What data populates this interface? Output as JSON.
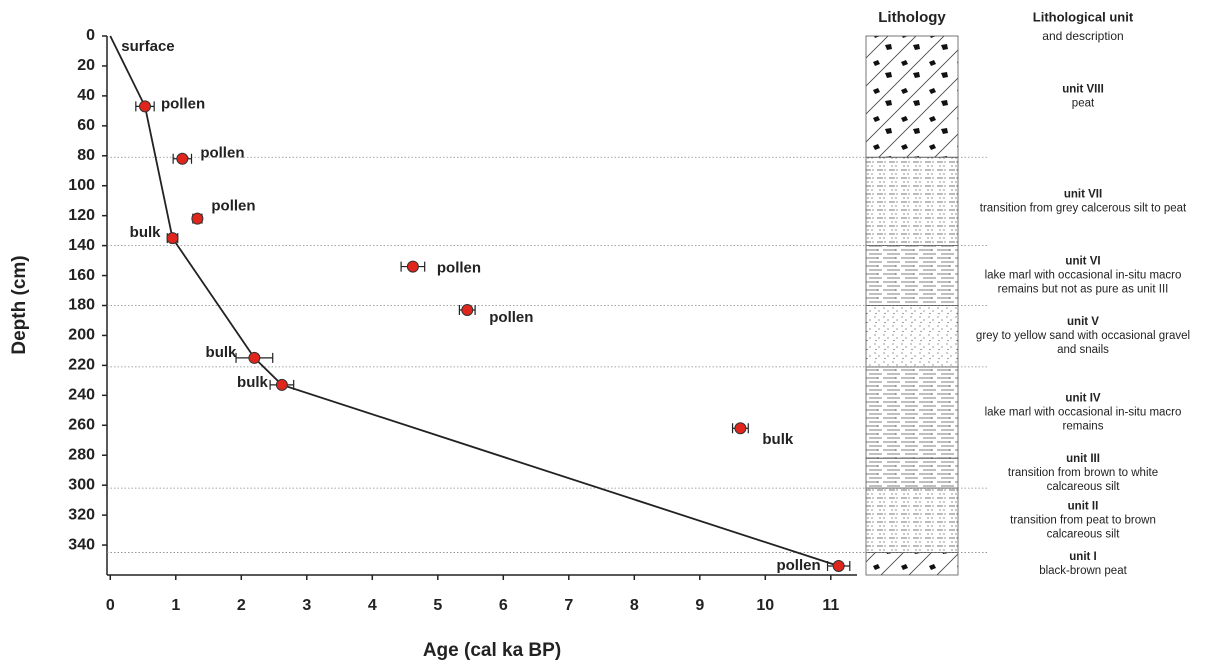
{
  "chart_data": {
    "type": "scatter",
    "x_label": "Age (cal ka BP)",
    "y_label": "Depth (cm)",
    "xlim": [
      -0.05,
      11.4
    ],
    "ylim": [
      0,
      360
    ],
    "y_inverted": true,
    "xticks": [
      0,
      1,
      2,
      3,
      4,
      5,
      6,
      7,
      8,
      9,
      10,
      11
    ],
    "yticks": [
      0,
      20,
      40,
      60,
      80,
      100,
      120,
      140,
      160,
      180,
      200,
      220,
      240,
      260,
      280,
      300,
      320,
      340
    ],
    "marker_color": "#e0261c",
    "surface_label": {
      "text": "surface",
      "color": "#1a9bd8",
      "x": 0,
      "y": 0
    },
    "series": [
      {
        "name": "pollen",
        "color": "#1fa84f",
        "x": [
          0.53,
          1.1,
          1.33,
          4.62,
          5.45,
          11.12
        ],
        "values": [
          47,
          82,
          122,
          154,
          183,
          354
        ],
        "errors": [
          0.14,
          0.14,
          0.07,
          0.18,
          0.12,
          0.17
        ]
      },
      {
        "name": "bulk",
        "color": "#a5522e",
        "x": [
          0.95,
          2.2,
          2.62,
          9.62
        ],
        "values": [
          135,
          215,
          233,
          262
        ],
        "errors": [
          0.08,
          0.28,
          0.18,
          0.12
        ]
      }
    ],
    "model": {
      "color": "#222222",
      "x": [
        0,
        0.53,
        0.95,
        2.2,
        2.62,
        11.12
      ],
      "values": [
        0,
        47,
        135,
        215,
        233,
        354
      ]
    },
    "boundaries": [
      81,
      140,
      180,
      221,
      302,
      345
    ],
    "lithology": {
      "title": "Lithology",
      "unit_header": [
        "Lithological unit",
        "and description"
      ],
      "units": [
        {
          "name": "unit VIII",
          "description": [
            "peat"
          ],
          "top": 0,
          "bottom": 81
        },
        {
          "name": "unit VII",
          "description": [
            "transition from grey calcerous silt to peat"
          ],
          "top": 81,
          "bottom": 140
        },
        {
          "name": "unit VI",
          "description": [
            "lake marl with occasional in-situ macro",
            "remains but not as pure as unit III"
          ],
          "top": 140,
          "bottom": 180
        },
        {
          "name": "unit V",
          "description": [
            "grey to yellow sand with occasional gravel",
            "and snails"
          ],
          "top": 180,
          "bottom": 221
        },
        {
          "name": "unit IV",
          "description": [
            "lake marl with occasional in-situ macro",
            "remains"
          ],
          "top": 221,
          "bottom": 282
        },
        {
          "name": "unit III",
          "description": [
            "transition from brown to white",
            "calcareous silt"
          ],
          "top": 282,
          "bottom": 302
        },
        {
          "name": "unit II",
          "description": [
            "transition from peat to brown",
            "calcareous silt"
          ],
          "top": 302,
          "bottom": 345
        },
        {
          "name": "unit I",
          "description": [
            "black-brown peat"
          ],
          "top": 345,
          "bottom": 360
        }
      ]
    }
  }
}
